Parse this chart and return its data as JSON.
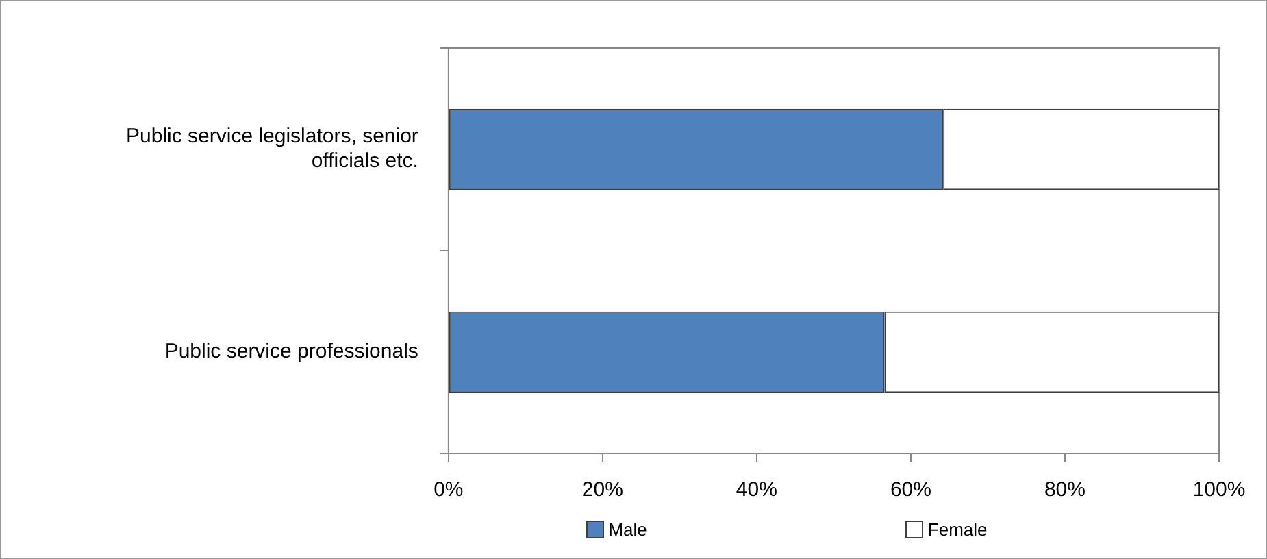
{
  "chart_data": {
    "type": "bar",
    "orientation": "horizontal",
    "stacked": true,
    "categories": [
      "Public service legislators, senior officials etc.",
      "Public service professionals"
    ],
    "series": [
      {
        "name": "Male",
        "color": "#4f81bd",
        "values": [
          64.2,
          56.6
        ]
      },
      {
        "name": "Female",
        "color": "#ffffff",
        "values": [
          35.8,
          43.4
        ]
      }
    ],
    "xlim": [
      0,
      100
    ],
    "xticks": [
      {
        "value": 0,
        "label": "0%"
      },
      {
        "value": 20,
        "label": "20%"
      },
      {
        "value": 40,
        "label": "40%"
      },
      {
        "value": 60,
        "label": "60%"
      },
      {
        "value": 80,
        "label": "80%"
      },
      {
        "value": 100,
        "label": "100%"
      }
    ],
    "grid": false,
    "legend": "bottom"
  }
}
